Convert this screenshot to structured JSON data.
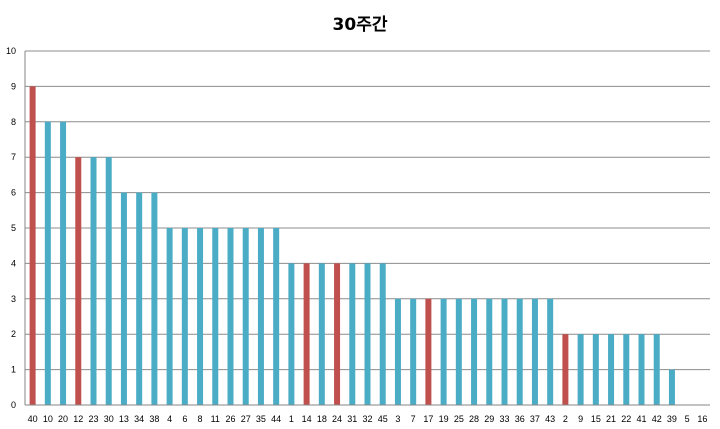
{
  "chart_data": {
    "type": "bar",
    "title": "30주간",
    "xlabel": "",
    "ylabel": "",
    "ylim": [
      0,
      10
    ],
    "yticks": [
      0,
      1,
      2,
      3,
      4,
      5,
      6,
      7,
      8,
      9,
      10
    ],
    "grid": true,
    "colors": {
      "default": "#4BACC6",
      "highlight": "#C0504D",
      "grid": "#8C8C8C",
      "axis": "#868686"
    },
    "categories": [
      "40",
      "10",
      "20",
      "12",
      "23",
      "30",
      "13",
      "34",
      "38",
      "4",
      "6",
      "8",
      "11",
      "26",
      "27",
      "35",
      "44",
      "1",
      "14",
      "18",
      "24",
      "31",
      "32",
      "45",
      "3",
      "7",
      "17",
      "19",
      "25",
      "28",
      "29",
      "33",
      "36",
      "37",
      "43",
      "2",
      "9",
      "15",
      "21",
      "22",
      "41",
      "42",
      "39",
      "5",
      "16"
    ],
    "values": [
      9,
      8,
      8,
      7,
      7,
      7,
      6,
      6,
      6,
      5,
      5,
      5,
      5,
      5,
      5,
      5,
      5,
      4,
      4,
      4,
      4,
      4,
      4,
      4,
      3,
      3,
      3,
      3,
      3,
      3,
      3,
      3,
      3,
      3,
      3,
      2,
      2,
      2,
      2,
      2,
      2,
      2,
      1,
      0,
      0
    ],
    "highlighted": [
      "40",
      "12",
      "14",
      "24",
      "17",
      "2"
    ]
  }
}
